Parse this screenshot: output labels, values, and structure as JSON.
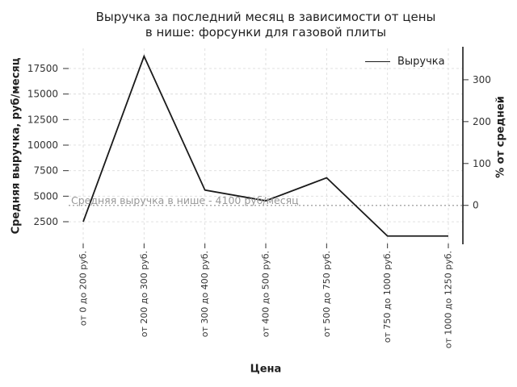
{
  "chart_data": {
    "type": "line",
    "title": "Выручка за последний месяц в зависимости от цены в нише: форсунки для газовой плиты",
    "title_lines": [
      "Выручка за последний месяц в зависимости от цены",
      "в нише: форсунки для газовой плиты"
    ],
    "xlabel": "Цена",
    "ylabel_left": "Средняя выручка, руб/месяц",
    "ylabel_right": "% от средней",
    "categories": [
      "от 0 до 200 руб.",
      "от 200 до 300 руб.",
      "от 300 до 400 руб.",
      "от 400 до 500 руб.",
      "от 500 до 750 руб.",
      "от 750 до 1000 руб.",
      "от 1000 до 1250 руб."
    ],
    "series": [
      {
        "name": "Выручка",
        "values": [
          2500,
          18700,
          5600,
          4550,
          6800,
          1100,
          1100
        ]
      }
    ],
    "yticks_left": [
      2500,
      5000,
      7500,
      10000,
      12500,
      15000,
      17500
    ],
    "yticks_right_percent": [
      0,
      100,
      200,
      300
    ],
    "ylim": [
      370,
      19470
    ],
    "average_line": {
      "value": 4100,
      "label": "Средняя выручка в нише - 4100 руб/месяц"
    },
    "legend": {
      "entries": [
        "Выручка"
      ],
      "position": "upper right",
      "frame": false
    },
    "grid": true,
    "colors": {
      "series_line": "#1a1a1a",
      "grid": "#dcdcdc",
      "average_line": "#ababab",
      "annotation_text": "#999999",
      "tick_label": "#333333",
      "spine": "#1a1a1a"
    }
  }
}
